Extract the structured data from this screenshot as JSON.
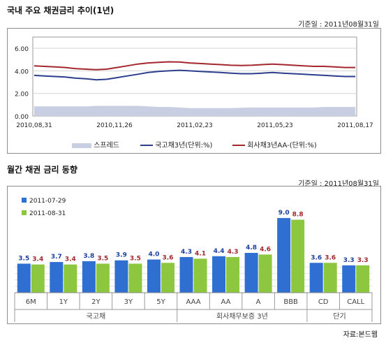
{
  "top": {
    "title": "국내 주요 채권금리 추이(1년)",
    "base_date": "기준일 : 2011년08월31일",
    "legend": {
      "spread": "스프레드",
      "gov": "국고채3년(단위:%)",
      "corp": "회사채3년AA-(단위:%)"
    },
    "colors": {
      "spread": "#c9cfe2",
      "gov": "#2c3e8c",
      "corp": "#a3272d"
    }
  },
  "bottom": {
    "title": "월간 채권 금리 동향",
    "base_date": "기준일 : 2011년08월31일",
    "source": "자료:본드웹",
    "legend": {
      "d1": "2011-07-29",
      "d2": "2011-08-31"
    },
    "colors": {
      "d1": "#2f6fd1",
      "d2": "#8dc63f",
      "label1": "#1b3fa0",
      "label2": "#a0282b"
    },
    "groups": [
      {
        "label": "국고채",
        "span": [
          0,
          4
        ]
      },
      {
        "label": "회사채무보증 3년",
        "span": [
          5,
          8
        ]
      },
      {
        "label": "단기",
        "span": [
          9,
          10
        ]
      }
    ]
  },
  "chart_data": [
    {
      "type": "line",
      "ylim": [
        0,
        7
      ],
      "yticks": [
        "0.00",
        "2.00",
        "4.00",
        "6.00"
      ],
      "ytick_values": [
        0,
        2,
        4,
        6
      ],
      "xticks": [
        "2010,08,31",
        "2010,11,26",
        "2011,02,23",
        "2011,05,23",
        "2011,08,17"
      ],
      "series": [
        {
          "name": "국고채3년(단위:%)",
          "values": [
            3.6,
            3.55,
            3.5,
            3.45,
            3.35,
            3.3,
            3.2,
            3.25,
            3.4,
            3.55,
            3.7,
            3.85,
            3.95,
            4.0,
            4.05,
            4.0,
            3.95,
            3.9,
            3.85,
            3.8,
            3.75,
            3.75,
            3.8,
            3.85,
            3.8,
            3.75,
            3.7,
            3.65,
            3.6,
            3.55,
            3.5,
            3.5
          ]
        },
        {
          "name": "회사채3년AA-(단위:%)",
          "values": [
            4.45,
            4.4,
            4.35,
            4.3,
            4.2,
            4.15,
            4.1,
            4.15,
            4.3,
            4.45,
            4.6,
            4.7,
            4.75,
            4.8,
            4.78,
            4.7,
            4.65,
            4.6,
            4.55,
            4.5,
            4.48,
            4.5,
            4.55,
            4.6,
            4.55,
            4.5,
            4.45,
            4.4,
            4.4,
            4.35,
            4.3,
            4.3
          ]
        },
        {
          "name": "스프레드",
          "values": [
            0.85,
            0.85,
            0.85,
            0.85,
            0.85,
            0.85,
            0.9,
            0.9,
            0.9,
            0.9,
            0.9,
            0.85,
            0.8,
            0.8,
            0.75,
            0.7,
            0.7,
            0.7,
            0.7,
            0.7,
            0.73,
            0.75,
            0.75,
            0.75,
            0.75,
            0.75,
            0.75,
            0.75,
            0.8,
            0.8,
            0.8,
            0.8
          ]
        }
      ]
    },
    {
      "type": "bar",
      "categories": [
        "6M",
        "1Y",
        "2Y",
        "3Y",
        "5Y",
        "AAA",
        "AA",
        "A",
        "BBB",
        "CD",
        "CALL"
      ],
      "ylim": [
        0,
        9.6
      ],
      "series": [
        {
          "name": "2011-07-29",
          "values": [
            3.5,
            3.7,
            3.8,
            3.9,
            4.0,
            4.3,
            4.4,
            4.8,
            9.0,
            3.6,
            3.3
          ]
        },
        {
          "name": "2011-08-31",
          "values": [
            3.4,
            3.4,
            3.5,
            3.5,
            3.6,
            4.1,
            4.3,
            4.6,
            8.8,
            3.6,
            3.3
          ]
        }
      ]
    }
  ]
}
